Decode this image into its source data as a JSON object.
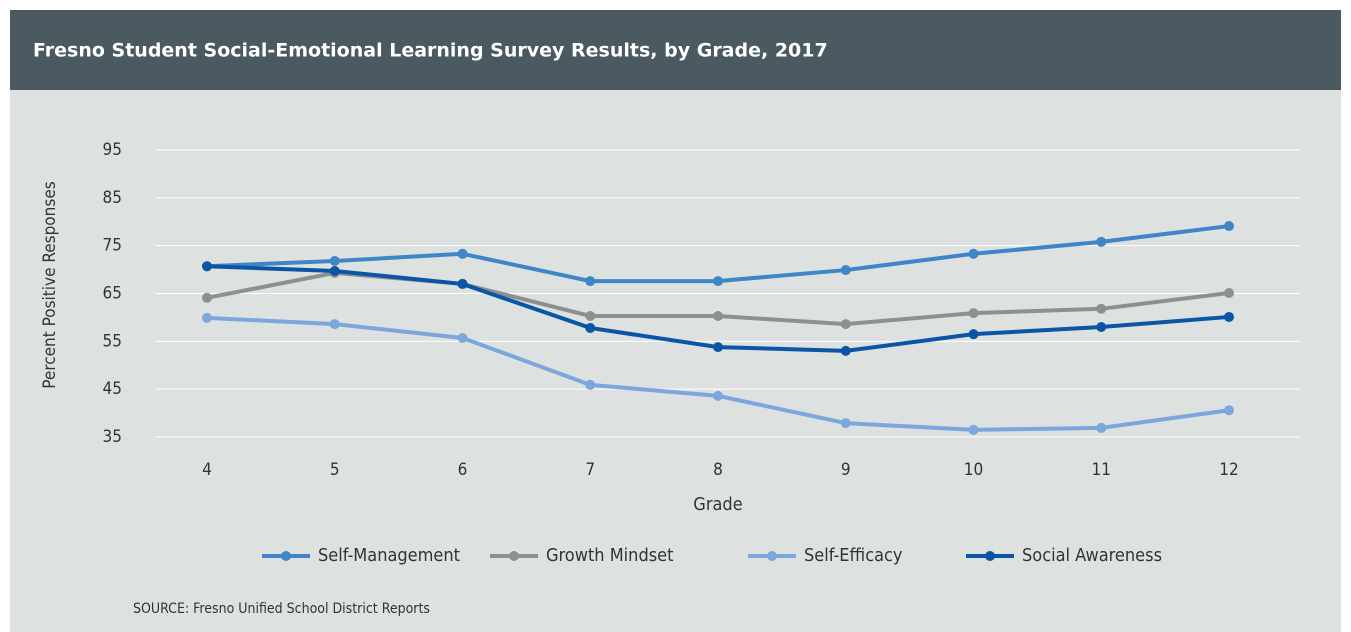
{
  "chart_data": {
    "type": "line",
    "title": "Fresno Student Social-Emotional Learning Survey Results, by Grade, 2017",
    "x_label": "Grade",
    "y_label": "Percent Positive Responses",
    "source": "SOURCE: Fresno Unified School District Reports",
    "categories": [
      "4",
      "5",
      "6",
      "7",
      "8",
      "9",
      "10",
      "11",
      "12"
    ],
    "ylim": [
      35,
      95
    ],
    "yticks": [
      35,
      45,
      55,
      65,
      75,
      85,
      95
    ],
    "grid": true,
    "series": [
      {
        "name": "Self-Management",
        "color": "#3f86c8",
        "values": [
          70.7,
          71.8,
          73.3,
          67.6,
          67.6,
          69.9,
          73.3,
          75.8,
          79.1
        ]
      },
      {
        "name": "Growth Mindset",
        "color": "#8c9091",
        "values": [
          64.1,
          69.3,
          67.0,
          60.3,
          60.3,
          58.6,
          60.9,
          61.8,
          65.1
        ]
      },
      {
        "name": "Self-Efficacy",
        "color": "#7ba7dc",
        "values": [
          59.9,
          58.6,
          55.7,
          45.9,
          43.6,
          37.9,
          36.5,
          36.9,
          40.6
        ]
      },
      {
        "name": "Social Awareness",
        "color": "#0a56a4",
        "values": [
          70.7,
          69.7,
          67.0,
          57.8,
          53.8,
          53.0,
          56.5,
          58.0,
          60.1
        ]
      }
    ]
  }
}
